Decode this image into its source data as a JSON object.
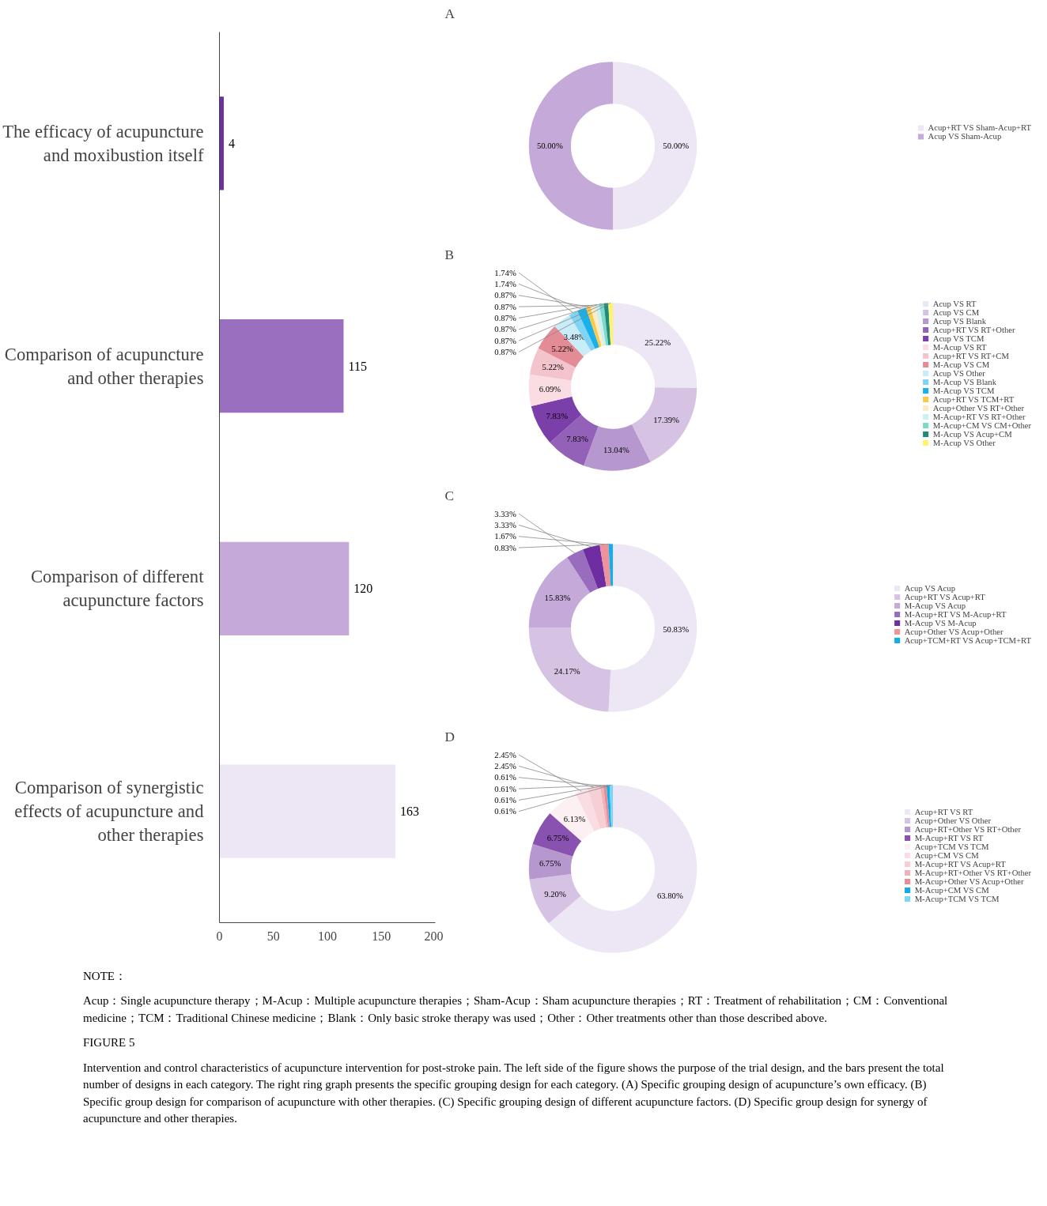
{
  "chart_data": [
    {
      "type": "bar",
      "orientation": "horizontal",
      "categories": [
        "The efficacy of acupuncture and moxibustion itself",
        "Comparison of acupuncture and other therapies",
        "Comparison of different acupuncture factors",
        "Comparison of synergistic effects of acupuncture and other therapies"
      ],
      "values": [
        4,
        115,
        120,
        163
      ],
      "colors": [
        "#6b2fa0",
        "#9b6fc0",
        "#c4a9d9",
        "#ede6f4"
      ],
      "xlim": [
        0,
        200
      ],
      "xticks": [
        0,
        50,
        100,
        150,
        200
      ],
      "data_labels": true,
      "grid": false,
      "annotations": [
        "NOTE：",
        "Acup：Single acupuncture therapy；M-Acup：Multiple acupuncture therapies；Sham-Acup：Sham acupuncture therapies；RT：Treatment of rehabilitation；CM：Conventional medicine；TCM：Traditional Chinese medicine；Blank：Only basic stroke therapy was used；Other：Other treatments other than those described above.",
        "FIGURE 5",
        "Intervention and control characteristics of acupuncture intervention for post-stroke pain. The left side of the figure shows the purpose of the trial design, and the bars present the total number of designs in each category. The right ring graph presents the specific grouping design for each category. (A) Specific grouping design of acupuncture’s own efficacy. (B) Specific group design for comparison of acupuncture with other therapies. (C) Specific grouping design of different acupuncture factors. (D) Specific group design for synergy of acupuncture and other therapies."
      ]
    },
    {
      "type": "donut",
      "title": "A",
      "categories": [
        "Acup+RT VS Sham-Acup+RT",
        "Acup VS Sham-Acup"
      ],
      "values": [
        50,
        50
      ],
      "value_labels": [
        "50.00%",
        "50.00%"
      ],
      "colors": [
        "#ede6f4",
        "#c4a9d9"
      ],
      "legend": "right"
    },
    {
      "type": "donut",
      "title": "B",
      "categories": [
        "Acup VS RT",
        "Acup VS CM",
        "Acup VS Blank",
        "Acup+RT VS RT+Other",
        "Acup VS TCM",
        "M-Acup VS RT",
        "Acup+RT VS RT+CM",
        "M-Acup VS CM",
        "Acup VS Other",
        "M-Acup VS Blank",
        "M-Acup VS TCM",
        "Acup+RT VS TCM+RT",
        "Acup+Other VS RT+Other",
        "M-Acup+RT VS RT+Other",
        "M-Acup+CM VS CM+Other",
        "M-Acup VS Acup+CM",
        "M-Acup VS Other"
      ],
      "values": [
        25.22,
        17.39,
        13.04,
        7.83,
        7.83,
        6.09,
        5.22,
        5.22,
        3.48,
        1.74,
        1.74,
        0.87,
        0.87,
        0.87,
        0.87,
        0.87,
        0.87
      ],
      "value_labels": [
        "25.22%",
        "17.39%",
        "13.04%",
        "7.83%",
        "7.83%",
        "6.09%",
        "5.22%",
        "5.22%",
        "3.48%",
        "1.74%",
        "1.74%",
        "0.87%",
        "0.87%",
        "0.87%",
        "0.87%",
        "0.87%",
        "0.87%"
      ],
      "colors": [
        "#ede6f4",
        "#d6c3e4",
        "#b698cf",
        "#9361b8",
        "#7a3fa8",
        "#f9dde2",
        "#f4c4cc",
        "#e48c96",
        "#c8ecf8",
        "#7fd3f3",
        "#1ab0ea",
        "#f9c94a",
        "#fdebc4",
        "#ccf0ef",
        "#7dd9cc",
        "#1e8c78",
        "#fff36b"
      ],
      "legend": "right"
    },
    {
      "type": "donut",
      "title": "C",
      "categories": [
        "Acup VS Acup",
        "Acup+RT VS Acup+RT",
        "M-Acup VS Acup",
        "M-Acup+RT VS M-Acup+RT",
        "M-Acup VS M-Acup",
        "Acup+Other VS Acup+Other",
        "Acup+TCM+RT VS Acup+TCM+RT"
      ],
      "values": [
        50.83,
        24.17,
        15.83,
        3.33,
        3.33,
        1.67,
        0.83
      ],
      "value_labels": [
        "50.83%",
        "24.17%",
        "15.83%",
        "3.33%",
        "3.33%",
        "1.67%",
        "0.83%"
      ],
      "colors": [
        "#ede6f4",
        "#d6c3e4",
        "#c4a9d9",
        "#9a6cbd",
        "#6e2ea2",
        "#ee939c",
        "#14aee8"
      ],
      "legend": "right"
    },
    {
      "type": "donut",
      "title": "D",
      "categories": [
        "Acup+RT VS RT",
        "Acup+Other VS Other",
        "Acup+RT+Other VS RT+Other",
        "M-Acup+RT VS RT",
        "Acup+TCM VS TCM",
        "Acup+CM VS CM",
        "M-Acup+RT VS Acup+RT",
        "M-Acup+RT+Other VS RT+Other",
        "M-Acup+Other VS Acup+Other",
        "M-Acup+CM VS CM",
        "M-Acup+TCM VS TCM"
      ],
      "values": [
        63.8,
        9.2,
        6.75,
        6.75,
        6.13,
        2.45,
        2.45,
        0.61,
        0.61,
        0.61,
        0.61
      ],
      "value_labels": [
        "63.80%",
        "9.20%",
        "6.75%",
        "6.75%",
        "6.13%",
        "2.45%",
        "2.45%",
        "0.61%",
        "0.61%",
        "0.61%",
        "0.61%"
      ],
      "colors": [
        "#ede6f4",
        "#d6c3e4",
        "#b698cf",
        "#8a52b0",
        "#fdf0f2",
        "#f9dde2",
        "#f6cfd5",
        "#f2b0b8",
        "#ea8c96",
        "#12ade8",
        "#7fd3f3"
      ],
      "legend": "right"
    }
  ]
}
